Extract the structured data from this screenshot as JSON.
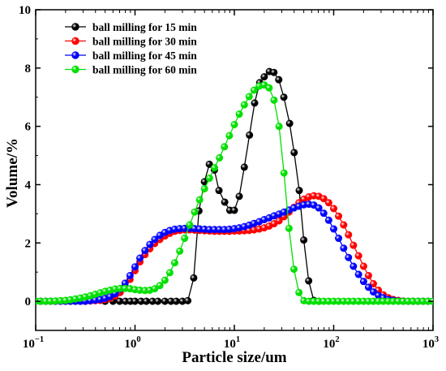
{
  "chart_data": {
    "type": "line",
    "title": "",
    "xlabel": "Particle size/um",
    "ylabel": "Volume/%",
    "x_scale": "log",
    "xlim": [
      0.1,
      1000
    ],
    "ylim": [
      -1,
      10
    ],
    "y_ticks": [
      0,
      2,
      4,
      6,
      8,
      10
    ],
    "y_tick_labels": [
      "0",
      "2",
      "4",
      "6",
      "8",
      "10"
    ],
    "x_ticks": [
      0.1,
      1,
      10,
      100,
      1000
    ],
    "x_tick_labels": [
      {
        "base": "10",
        "exp": "−1"
      },
      {
        "base": "10",
        "exp": "0"
      },
      {
        "base": "10",
        "exp": "1"
      },
      {
        "base": "10",
        "exp": "2"
      },
      {
        "base": "10",
        "exp": "3"
      }
    ],
    "grid": false,
    "legend_position": "top-left",
    "series": [
      {
        "name": "ball milling for 15 min",
        "color": "#000000",
        "points": [
          [
            0.5,
            0
          ],
          [
            0.6,
            0
          ],
          [
            0.7,
            0
          ],
          [
            0.8,
            0
          ],
          [
            0.9,
            0
          ],
          [
            1.0,
            0
          ],
          [
            1.15,
            0
          ],
          [
            1.3,
            0
          ],
          [
            1.5,
            0
          ],
          [
            1.7,
            0
          ],
          [
            2.0,
            0
          ],
          [
            2.3,
            0
          ],
          [
            2.6,
            0
          ],
          [
            3.0,
            0
          ],
          [
            3.4,
            0.02
          ],
          [
            3.9,
            0.8
          ],
          [
            4.4,
            3.1
          ],
          [
            5.0,
            4.1
          ],
          [
            5.6,
            4.7
          ],
          [
            6.3,
            4.5
          ],
          [
            7.0,
            3.8
          ],
          [
            8.0,
            3.4
          ],
          [
            9.0,
            3.12
          ],
          [
            10.0,
            3.12
          ],
          [
            11.2,
            3.6
          ],
          [
            12.6,
            4.6
          ],
          [
            14.2,
            5.7
          ],
          [
            16.0,
            6.8
          ],
          [
            18.0,
            7.5
          ],
          [
            20.0,
            7.7
          ],
          [
            22.5,
            7.88
          ],
          [
            25.0,
            7.85
          ],
          [
            28.0,
            7.6
          ],
          [
            31.5,
            7.0
          ],
          [
            36.0,
            6.1
          ],
          [
            40.0,
            5.1
          ],
          [
            45.0,
            3.8
          ],
          [
            50.0,
            2.1
          ],
          [
            56.0,
            0.7
          ],
          [
            63.0,
            0.03
          ],
          [
            71.0,
            0
          ]
        ]
      },
      {
        "name": "ball milling for 30 min",
        "color": "#ff0000",
        "points": [
          [
            0.1,
            0
          ],
          [
            0.112,
            0
          ],
          [
            0.126,
            0
          ],
          [
            0.141,
            0
          ],
          [
            0.158,
            0
          ],
          [
            0.178,
            0
          ],
          [
            0.2,
            0
          ],
          [
            0.224,
            0
          ],
          [
            0.251,
            0
          ],
          [
            0.282,
            0
          ],
          [
            0.316,
            0
          ],
          [
            0.355,
            0.01
          ],
          [
            0.398,
            0.02
          ],
          [
            0.447,
            0.03
          ],
          [
            0.501,
            0.06
          ],
          [
            0.562,
            0.1
          ],
          [
            0.631,
            0.18
          ],
          [
            0.708,
            0.3
          ],
          [
            0.794,
            0.5
          ],
          [
            0.891,
            0.75
          ],
          [
            1.0,
            1.05
          ],
          [
            1.12,
            1.35
          ],
          [
            1.26,
            1.6
          ],
          [
            1.41,
            1.8
          ],
          [
            1.58,
            1.98
          ],
          [
            1.78,
            2.12
          ],
          [
            2.0,
            2.24
          ],
          [
            2.24,
            2.33
          ],
          [
            2.51,
            2.4
          ],
          [
            2.82,
            2.43
          ],
          [
            3.16,
            2.45
          ],
          [
            3.55,
            2.45
          ],
          [
            3.98,
            2.44
          ],
          [
            4.47,
            2.43
          ],
          [
            5.01,
            2.42
          ],
          [
            5.62,
            2.41
          ],
          [
            6.31,
            2.4
          ],
          [
            7.08,
            2.4
          ],
          [
            7.94,
            2.4
          ],
          [
            8.91,
            2.4
          ],
          [
            10.0,
            2.41
          ],
          [
            11.2,
            2.41
          ],
          [
            12.6,
            2.42
          ],
          [
            14.1,
            2.43
          ],
          [
            15.8,
            2.45
          ],
          [
            17.8,
            2.48
          ],
          [
            20.0,
            2.52
          ],
          [
            22.4,
            2.58
          ],
          [
            25.1,
            2.66
          ],
          [
            28.2,
            2.76
          ],
          [
            31.6,
            2.9
          ],
          [
            35.5,
            3.06
          ],
          [
            39.8,
            3.22
          ],
          [
            44.7,
            3.38
          ],
          [
            50.1,
            3.5
          ],
          [
            56.2,
            3.58
          ],
          [
            63.1,
            3.62
          ],
          [
            70.8,
            3.6
          ],
          [
            79.4,
            3.52
          ],
          [
            89.1,
            3.38
          ],
          [
            100,
            3.18
          ],
          [
            112,
            2.92
          ],
          [
            126,
            2.62
          ],
          [
            141,
            2.28
          ],
          [
            158,
            1.92
          ],
          [
            178,
            1.56
          ],
          [
            200,
            1.2
          ],
          [
            224,
            0.88
          ],
          [
            251,
            0.6
          ],
          [
            282,
            0.38
          ],
          [
            316,
            0.22
          ],
          [
            355,
            0.12
          ],
          [
            398,
            0.06
          ],
          [
            447,
            0.03
          ],
          [
            501,
            0.01
          ],
          [
            562,
            0
          ],
          [
            631,
            0
          ],
          [
            708,
            0
          ],
          [
            794,
            0
          ],
          [
            891,
            0
          ],
          [
            1000,
            0
          ]
        ]
      },
      {
        "name": "ball milling for 45 min",
        "color": "#0000ff",
        "points": [
          [
            0.1,
            0
          ],
          [
            0.112,
            0
          ],
          [
            0.126,
            0
          ],
          [
            0.141,
            0
          ],
          [
            0.158,
            0
          ],
          [
            0.178,
            0
          ],
          [
            0.2,
            0
          ],
          [
            0.224,
            0
          ],
          [
            0.251,
            0
          ],
          [
            0.282,
            0
          ],
          [
            0.316,
            0
          ],
          [
            0.355,
            0.02
          ],
          [
            0.398,
            0.04
          ],
          [
            0.447,
            0.06
          ],
          [
            0.501,
            0.1
          ],
          [
            0.562,
            0.16
          ],
          [
            0.631,
            0.26
          ],
          [
            0.708,
            0.42
          ],
          [
            0.794,
            0.62
          ],
          [
            0.891,
            0.88
          ],
          [
            1.0,
            1.18
          ],
          [
            1.12,
            1.48
          ],
          [
            1.26,
            1.74
          ],
          [
            1.41,
            1.95
          ],
          [
            1.58,
            2.12
          ],
          [
            1.78,
            2.26
          ],
          [
            2.0,
            2.36
          ],
          [
            2.24,
            2.43
          ],
          [
            2.51,
            2.47
          ],
          [
            2.82,
            2.49
          ],
          [
            3.16,
            2.5
          ],
          [
            3.55,
            2.5
          ],
          [
            3.98,
            2.49
          ],
          [
            4.47,
            2.48
          ],
          [
            5.01,
            2.47
          ],
          [
            5.62,
            2.46
          ],
          [
            6.31,
            2.46
          ],
          [
            7.08,
            2.46
          ],
          [
            7.94,
            2.46
          ],
          [
            8.91,
            2.47
          ],
          [
            10.0,
            2.49
          ],
          [
            11.2,
            2.52
          ],
          [
            12.6,
            2.56
          ],
          [
            14.1,
            2.61
          ],
          [
            15.8,
            2.67
          ],
          [
            17.8,
            2.73
          ],
          [
            20.0,
            2.8
          ],
          [
            22.4,
            2.86
          ],
          [
            25.1,
            2.93
          ],
          [
            28.2,
            2.99
          ],
          [
            31.6,
            3.06
          ],
          [
            35.5,
            3.13
          ],
          [
            39.8,
            3.2
          ],
          [
            44.7,
            3.26
          ],
          [
            50.1,
            3.31
          ],
          [
            56.2,
            3.33
          ],
          [
            63.1,
            3.3
          ],
          [
            70.8,
            3.2
          ],
          [
            79.4,
            3.02
          ],
          [
            89.1,
            2.78
          ],
          [
            100,
            2.48
          ],
          [
            112,
            2.16
          ],
          [
            126,
            1.82
          ],
          [
            141,
            1.5
          ],
          [
            158,
            1.2
          ],
          [
            178,
            0.92
          ],
          [
            200,
            0.68
          ],
          [
            224,
            0.48
          ],
          [
            251,
            0.32
          ],
          [
            282,
            0.2
          ],
          [
            316,
            0.12
          ],
          [
            355,
            0.06
          ],
          [
            398,
            0.03
          ],
          [
            447,
            0.01
          ],
          [
            501,
            0
          ],
          [
            562,
            0
          ],
          [
            631,
            0
          ],
          [
            708,
            0
          ],
          [
            794,
            0
          ],
          [
            891,
            0
          ],
          [
            1000,
            0
          ]
        ]
      },
      {
        "name": "ball milling for 60 min",
        "color": "#00e000",
        "points": [
          [
            0.1,
            0
          ],
          [
            0.112,
            0
          ],
          [
            0.126,
            0
          ],
          [
            0.141,
            0
          ],
          [
            0.158,
            0.01
          ],
          [
            0.178,
            0.02
          ],
          [
            0.2,
            0.03
          ],
          [
            0.224,
            0.05
          ],
          [
            0.251,
            0.08
          ],
          [
            0.282,
            0.11
          ],
          [
            0.316,
            0.15
          ],
          [
            0.355,
            0.19
          ],
          [
            0.398,
            0.24
          ],
          [
            0.447,
            0.29
          ],
          [
            0.501,
            0.34
          ],
          [
            0.562,
            0.38
          ],
          [
            0.631,
            0.42
          ],
          [
            0.708,
            0.44
          ],
          [
            0.794,
            0.44
          ],
          [
            0.891,
            0.43
          ],
          [
            1.0,
            0.4
          ],
          [
            1.12,
            0.38
          ],
          [
            1.26,
            0.37
          ],
          [
            1.41,
            0.38
          ],
          [
            1.58,
            0.43
          ],
          [
            1.78,
            0.54
          ],
          [
            2.0,
            0.72
          ],
          [
            2.24,
            0.98
          ],
          [
            2.51,
            1.32
          ],
          [
            2.82,
            1.72
          ],
          [
            3.16,
            2.16
          ],
          [
            3.55,
            2.62
          ],
          [
            3.98,
            3.06
          ],
          [
            4.47,
            3.48
          ],
          [
            5.01,
            3.86
          ],
          [
            5.62,
            4.22
          ],
          [
            6.31,
            4.58
          ],
          [
            7.08,
            4.92
          ],
          [
            7.94,
            5.3
          ],
          [
            8.91,
            5.68
          ],
          [
            10.0,
            6.06
          ],
          [
            11.2,
            6.42
          ],
          [
            12.6,
            6.74
          ],
          [
            14.1,
            7.02
          ],
          [
            15.8,
            7.24
          ],
          [
            17.8,
            7.38
          ],
          [
            20.0,
            7.42
          ],
          [
            22.4,
            7.32
          ],
          [
            25.1,
            6.9
          ],
          [
            28.2,
            6.0
          ],
          [
            31.6,
            4.4
          ],
          [
            35.5,
            2.5
          ],
          [
            39.8,
            1.1
          ],
          [
            44.7,
            0.3
          ],
          [
            50.1,
            0.02
          ],
          [
            56.2,
            0
          ],
          [
            63.1,
            0
          ],
          [
            70.8,
            0
          ],
          [
            79.4,
            0
          ],
          [
            89.1,
            0
          ],
          [
            100,
            0
          ],
          [
            112,
            0
          ],
          [
            126,
            0
          ],
          [
            141,
            0
          ],
          [
            158,
            0
          ],
          [
            178,
            0
          ],
          [
            200,
            0
          ],
          [
            224,
            0
          ],
          [
            251,
            0
          ],
          [
            282,
            0
          ],
          [
            316,
            0
          ],
          [
            355,
            0
          ],
          [
            398,
            0
          ],
          [
            447,
            0
          ],
          [
            501,
            0
          ],
          [
            562,
            0
          ],
          [
            631,
            0
          ],
          [
            708,
            0
          ],
          [
            794,
            0
          ],
          [
            891,
            0
          ],
          [
            1000,
            0
          ]
        ]
      }
    ]
  }
}
